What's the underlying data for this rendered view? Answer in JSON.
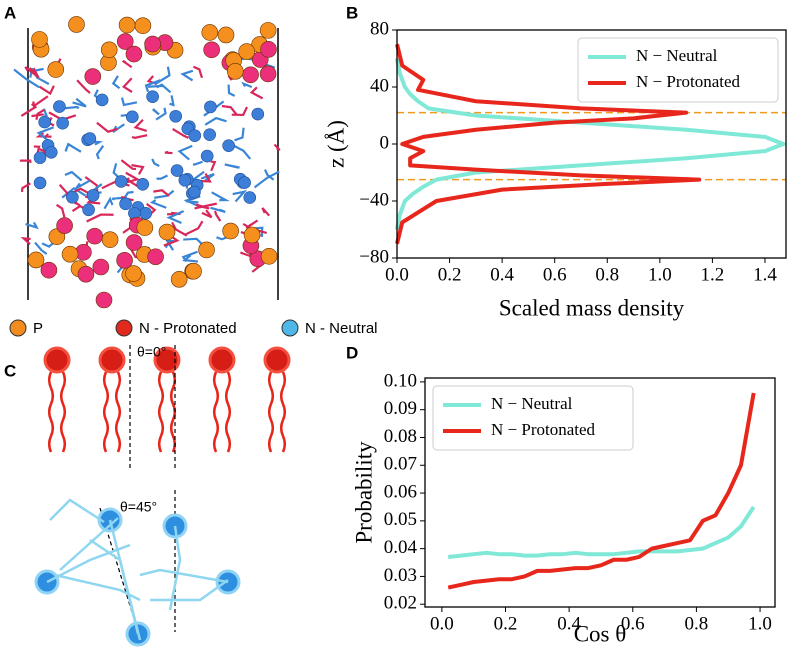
{
  "panel_labels": [
    "A",
    "B",
    "C",
    "D"
  ],
  "panel_a_legend": [
    {
      "label": "P",
      "color": "#f28c1e"
    },
    {
      "label": "N - Protonated",
      "color": "#e02a1e"
    },
    {
      "label": "N - Neutral",
      "color": "#4fb8e8"
    }
  ],
  "panel_c_annotations": [
    "θ=0°",
    "θ=45°"
  ],
  "chart_data": [
    {
      "type": "line",
      "x_label": "Scaled mass density",
      "y_label": "z (Å)",
      "xlim": [
        0,
        1.48
      ],
      "ylim": [
        -80,
        80
      ],
      "xticks": [
        {
          "value": 0,
          "label": "0.0"
        },
        0.2,
        0.4,
        0.6,
        0.8,
        {
          "value": 1,
          "label": "1.0"
        },
        1.2,
        1.4
      ],
      "yticks": [
        {
          "value": -80,
          "label": "−80"
        },
        {
          "value": -40,
          "label": "−40"
        },
        0,
        40,
        80
      ],
      "legend": "upper right",
      "hlines": [
        22,
        -25
      ],
      "hline_color": "#f39a1e",
      "series": [
        {
          "name": "N − Neutral",
          "color": "#7fe8d6",
          "x": [
            0,
            0.01,
            0.03,
            0.06,
            0.1,
            0.15,
            0.3,
            0.7,
            1.1,
            1.4,
            1.47,
            1.4,
            1.1,
            0.7,
            0.3,
            0.12,
            0.08,
            0.05,
            0.03,
            0.01,
            0
          ],
          "y": [
            -60,
            -50,
            -40,
            -35,
            -30,
            -25,
            -20,
            -15,
            -10,
            -5,
            0,
            5,
            10,
            15,
            20,
            25,
            30,
            35,
            40,
            50,
            60
          ]
        },
        {
          "name": "N − Protonated",
          "color": "#e8271c",
          "x": [
            0,
            0.02,
            0.08,
            0.15,
            0.4,
            0.8,
            1.15,
            0.7,
            0.3,
            0.05,
            0.05,
            0.1,
            0.02,
            0.1,
            0.3,
            0.6,
            0.9,
            1.1,
            0.7,
            0.3,
            0.08,
            0.1,
            0.02,
            0
          ],
          "y": [
            -70,
            -55,
            -48,
            -40,
            -32,
            -28,
            -25,
            -22,
            -18,
            -15,
            -10,
            -5,
            0,
            5,
            10,
            15,
            18,
            22,
            25,
            30,
            38,
            45,
            55,
            70
          ]
        }
      ]
    },
    {
      "type": "line",
      "x_label": "Cos θ",
      "y_label": "Probability",
      "xlim": [
        -0.053,
        1.047
      ],
      "ylim": [
        0.019,
        0.1014
      ],
      "xticks": [
        {
          "value": 0,
          "label": "0.0"
        },
        0.2,
        0.4,
        0.6,
        0.8,
        {
          "value": 1,
          "label": "1.0"
        }
      ],
      "yticks": [
        0.02,
        0.03,
        0.04,
        0.05,
        0.06,
        0.07,
        0.08,
        0.09,
        {
          "value": 0.1,
          "label": "0.10"
        }
      ],
      "legend": "upper left",
      "series": [
        {
          "name": "N − Neutral",
          "color": "#7fe8d6",
          "x": [
            0.02,
            0.06,
            0.1,
            0.14,
            0.18,
            0.22,
            0.26,
            0.3,
            0.34,
            0.38,
            0.42,
            0.46,
            0.5,
            0.54,
            0.58,
            0.62,
            0.66,
            0.7,
            0.74,
            0.78,
            0.82,
            0.86,
            0.9,
            0.94,
            0.98
          ],
          "y": [
            0.037,
            0.0375,
            0.038,
            0.0385,
            0.038,
            0.038,
            0.0375,
            0.0375,
            0.038,
            0.038,
            0.0385,
            0.038,
            0.038,
            0.038,
            0.0385,
            0.039,
            0.039,
            0.039,
            0.039,
            0.0395,
            0.04,
            0.042,
            0.044,
            0.048,
            0.055
          ]
        },
        {
          "name": "N − Protonated",
          "color": "#e8271c",
          "x": [
            0.02,
            0.06,
            0.1,
            0.14,
            0.18,
            0.22,
            0.26,
            0.3,
            0.34,
            0.38,
            0.42,
            0.46,
            0.5,
            0.54,
            0.58,
            0.62,
            0.66,
            0.7,
            0.74,
            0.78,
            0.82,
            0.86,
            0.9,
            0.94,
            0.98
          ],
          "y": [
            0.026,
            0.027,
            0.028,
            0.0285,
            0.029,
            0.029,
            0.03,
            0.032,
            0.032,
            0.0325,
            0.033,
            0.033,
            0.034,
            0.036,
            0.036,
            0.037,
            0.04,
            0.041,
            0.042,
            0.043,
            0.05,
            0.052,
            0.06,
            0.07,
            0.096
          ]
        }
      ]
    }
  ]
}
